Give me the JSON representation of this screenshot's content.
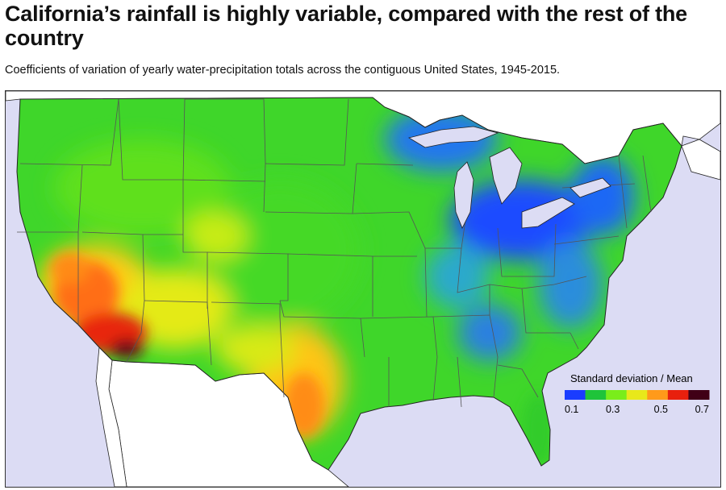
{
  "title": "California’s rainfall is highly variable, compared with the rest of the country",
  "subtitle": "Coefficients of variation of yearly water-precipitation totals across the contiguous United States, 1945-2015.",
  "legend": {
    "title": "Standard deviation / Mean",
    "ticks": [
      "0.1",
      "0.3",
      "0.5",
      "0.7"
    ],
    "scale_min": 0.1,
    "scale_max": 0.7,
    "colors": [
      "#1a3cff",
      "#1fc43a",
      "#7aed1a",
      "#e8e81a",
      "#ff9a1a",
      "#e8200d",
      "#400016"
    ]
  },
  "map_colors": {
    "water": "#dcdcf4",
    "outside_land": "#ffffff",
    "state_border": "#555555"
  }
}
